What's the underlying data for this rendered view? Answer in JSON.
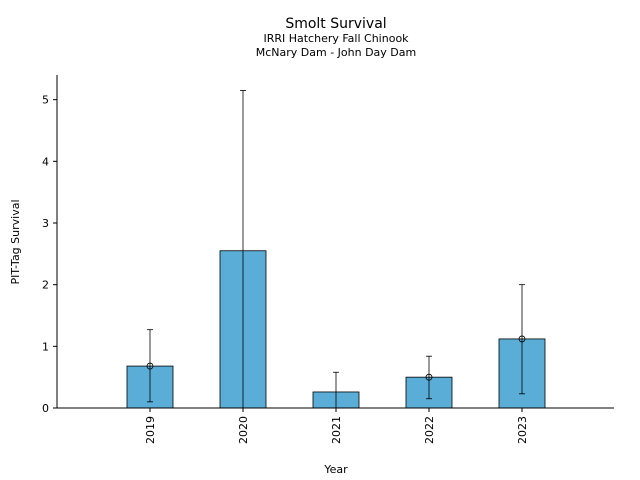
{
  "chart_data": {
    "type": "bar",
    "title": "Smolt Survival",
    "subtitle_lines": [
      "IRRI Hatchery Fall Chinook",
      "McNary Dam - John Day Dam"
    ],
    "xlabel": "Year",
    "ylabel": "PIT-Tag Survival",
    "categories": [
      "2019",
      "2020",
      "2021",
      "2022",
      "2023"
    ],
    "values": [
      0.68,
      2.55,
      0.26,
      0.5,
      1.12
    ],
    "error_low": [
      0.1,
      0.0,
      0.0,
      0.15,
      0.23
    ],
    "error_high": [
      1.27,
      5.15,
      0.58,
      0.84,
      2.0
    ],
    "point_markers": [
      true,
      false,
      false,
      true,
      true
    ],
    "ylim": [
      0,
      5.4
    ],
    "yticks": [
      0,
      1,
      2,
      3,
      4,
      5
    ],
    "bar_color": "#5aadd6",
    "edge_color": "#000000",
    "grid": false,
    "legend": "none"
  }
}
